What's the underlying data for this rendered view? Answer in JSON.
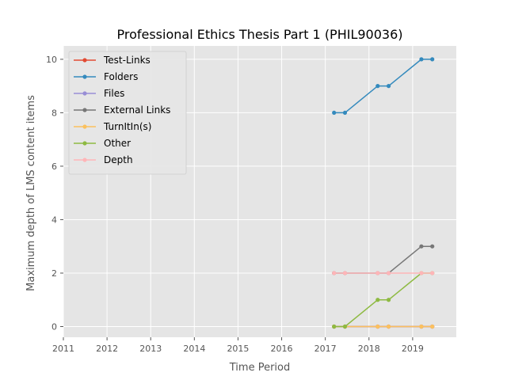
{
  "chart_data": {
    "type": "line",
    "title": "Professional Ethics Thesis Part 1 (PHIL90036)",
    "xlabel": "Time Period",
    "ylabel": "Maximum depth of LMS content items",
    "xlim": [
      2011,
      2020
    ],
    "ylim": [
      -0.4,
      10.5
    ],
    "x_ticks": [
      "2011",
      "2012",
      "2013",
      "2014",
      "2015",
      "2016",
      "2017",
      "2018",
      "2019"
    ],
    "y_ticks": [
      "0",
      "2",
      "4",
      "6",
      "8",
      "10"
    ],
    "grid": true,
    "legend_position": "top-left",
    "x": [
      2017.2,
      2017.45,
      2018.2,
      2018.45,
      2019.2,
      2019.45
    ],
    "series": [
      {
        "name": "Test-Links",
        "color": "#e24a33",
        "values": [
          0,
          0,
          0,
          0,
          0,
          0
        ]
      },
      {
        "name": "Folders",
        "color": "#348abd",
        "values": [
          8,
          8,
          9,
          9,
          10,
          10
        ]
      },
      {
        "name": "Files",
        "color": "#988ed5",
        "values": [
          0,
          0,
          0,
          0,
          0,
          0
        ]
      },
      {
        "name": "External Links",
        "color": "#777777",
        "values": [
          2,
          2,
          2,
          2,
          3,
          3
        ]
      },
      {
        "name": "TurnItIn(s)",
        "color": "#fbc15e",
        "values": [
          0,
          0,
          0,
          0,
          0,
          0
        ]
      },
      {
        "name": "Other",
        "color": "#8eba42",
        "values": [
          0,
          0,
          1,
          1,
          2,
          2
        ]
      },
      {
        "name": "Depth",
        "color": "#ffb5b8",
        "values": [
          2,
          2,
          2,
          2,
          2,
          2
        ]
      }
    ]
  }
}
